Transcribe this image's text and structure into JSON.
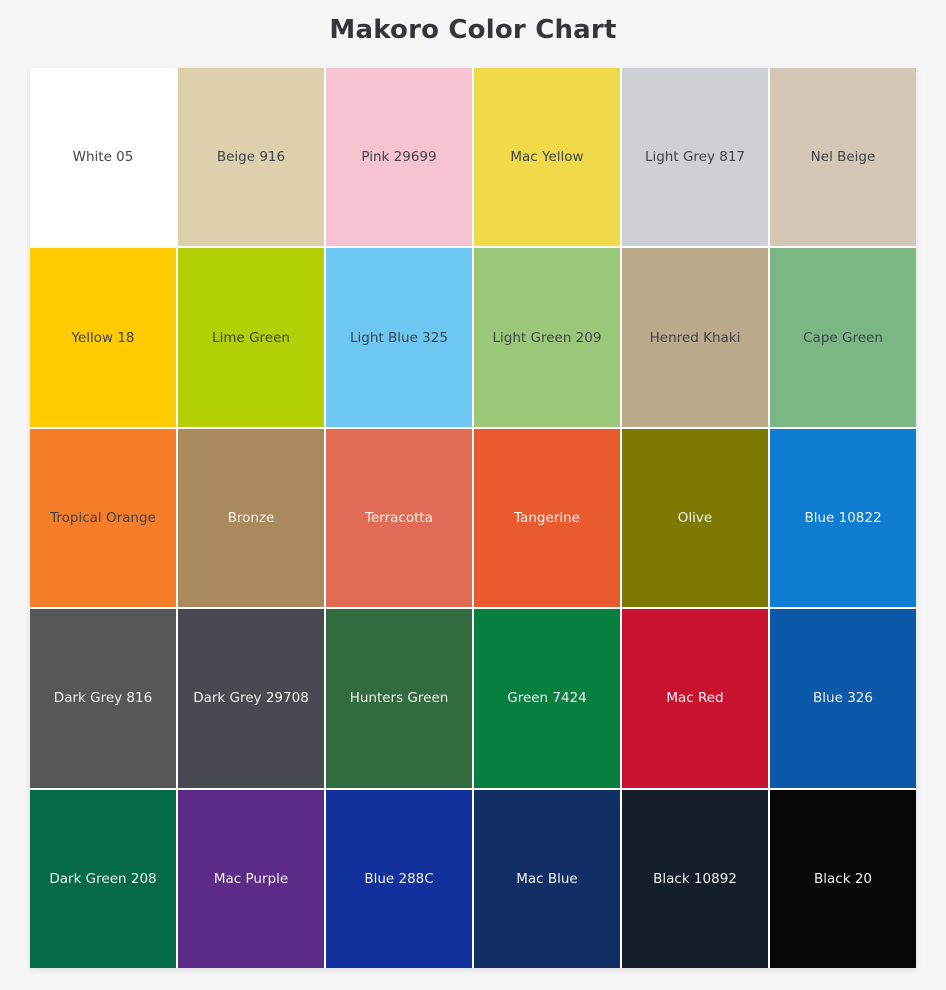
{
  "page": {
    "title": "Makoro Color Chart"
  },
  "colors": {
    "background": "#f6f6f7",
    "title_text": "#33373d",
    "grid_gap": "#ffffff",
    "dark_label": "#3f444b",
    "light_label": "#f3f1ef"
  },
  "chart_data": {
    "type": "table",
    "title": "Makoro Color Chart",
    "grid": {
      "rows": 5,
      "columns": 6
    },
    "swatches": [
      {
        "label": "White 05",
        "hex": "#ffffff",
        "label_tone": "dark"
      },
      {
        "label": "Beige 916",
        "hex": "#ddd0ad",
        "label_tone": "dark"
      },
      {
        "label": "Pink 29699",
        "hex": "#f6c3d0",
        "label_tone": "dark"
      },
      {
        "label": "Mac Yellow",
        "hex": "#f1da49",
        "label_tone": "dark"
      },
      {
        "label": "Light Grey 817",
        "hex": "#cdd1d5",
        "label_tone": "dark"
      },
      {
        "label": "Nel Beige",
        "hex": "#d5c7b6",
        "label_tone": "dark"
      },
      {
        "label": "Yellow 18",
        "hex": "#fecb00",
        "label_tone": "dark"
      },
      {
        "label": "Lime Green",
        "hex": "#b3cf05",
        "label_tone": "dark"
      },
      {
        "label": "Light Blue 325",
        "hex": "#6cc8f1",
        "label_tone": "dark"
      },
      {
        "label": "Light Green 209",
        "hex": "#9bc878",
        "label_tone": "dark"
      },
      {
        "label": "Henred Khaki",
        "hex": "#bba98b",
        "label_tone": "dark"
      },
      {
        "label": "Cape Green",
        "hex": "#7bb685",
        "label_tone": "dark"
      },
      {
        "label": "Tropical Orange",
        "hex": "#f67d29",
        "label_tone": "dark"
      },
      {
        "label": "Bronze",
        "hex": "#aa8a5c",
        "label_tone": "light"
      },
      {
        "label": "Terracotta",
        "hex": "#e16b54",
        "label_tone": "light"
      },
      {
        "label": "Tangerine",
        "hex": "#ea5a2f",
        "label_tone": "light"
      },
      {
        "label": "Olive",
        "hex": "#7e7903",
        "label_tone": "light"
      },
      {
        "label": "Blue 10822",
        "hex": "#0e7cd1",
        "label_tone": "light"
      },
      {
        "label": "Dark Grey 816",
        "hex": "#57575a",
        "label_tone": "light"
      },
      {
        "label": "Dark Grey 29708",
        "hex": "#474a50",
        "label_tone": "light"
      },
      {
        "label": "Hunters Green",
        "hex": "#336b41",
        "label_tone": "light"
      },
      {
        "label": "Green 7424",
        "hex": "#077f41",
        "label_tone": "light"
      },
      {
        "label": "Mac Red",
        "hex": "#c8122f",
        "label_tone": "light"
      },
      {
        "label": "Blue 326",
        "hex": "#0c59a9",
        "label_tone": "light"
      },
      {
        "label": "Dark Green 208",
        "hex": "#046a49",
        "label_tone": "light"
      },
      {
        "label": "Mac Purple",
        "hex": "#5c2b88",
        "label_tone": "light"
      },
      {
        "label": "Blue 288C",
        "hex": "#11309b",
        "label_tone": "light"
      },
      {
        "label": "Mac Blue",
        "hex": "#122f65",
        "label_tone": "light"
      },
      {
        "label": "Black 10892",
        "hex": "#131e2a",
        "label_tone": "light"
      },
      {
        "label": "Black 20",
        "hex": "#070707",
        "label_tone": "light"
      }
    ]
  }
}
